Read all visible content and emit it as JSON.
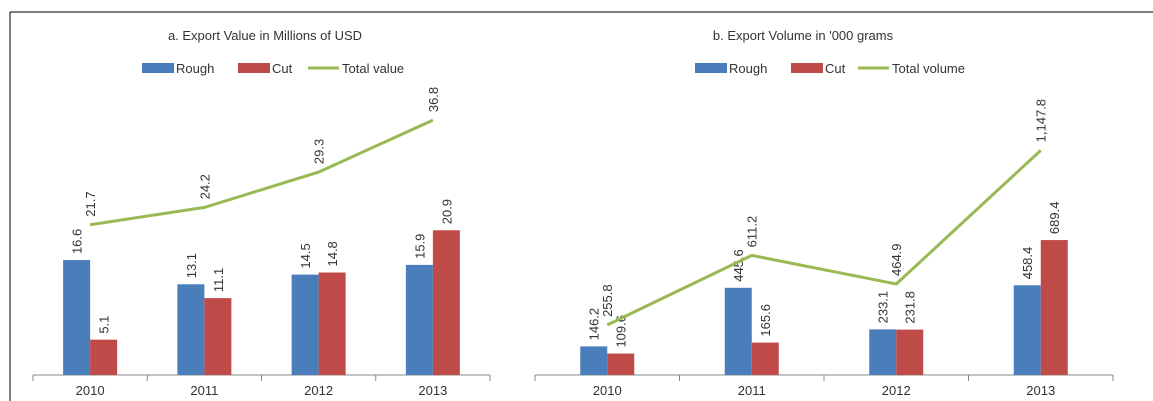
{
  "chart_data": [
    {
      "type": "bar",
      "title": "a. Export Value in Millions of USD",
      "categories": [
        "2010",
        "2011",
        "2012",
        "2013"
      ],
      "series": [
        {
          "name": "Rough",
          "type": "bar",
          "color": "#4a7ebb",
          "values": [
            16.6,
            13.1,
            14.5,
            15.9
          ]
        },
        {
          "name": "Cut",
          "type": "bar",
          "color": "#be4b48",
          "values": [
            5.1,
            11.1,
            14.8,
            20.9
          ]
        },
        {
          "name": "Total value",
          "type": "line",
          "color": "#98b954",
          "values": [
            21.7,
            24.2,
            29.3,
            36.8
          ]
        }
      ],
      "ylim": [
        0,
        40
      ]
    },
    {
      "type": "bar",
      "title": "b. Export Volume in '000 grams",
      "categories": [
        "2010",
        "2011",
        "2012",
        "2013"
      ],
      "series": [
        {
          "name": "Rough",
          "type": "bar",
          "color": "#4a7ebb",
          "values": [
            146.2,
            445.6,
            233.1,
            458.4
          ]
        },
        {
          "name": "Cut",
          "type": "bar",
          "color": "#be4b48",
          "values": [
            109.6,
            165.6,
            231.8,
            689.4
          ]
        },
        {
          "name": "Total volume",
          "type": "line",
          "color": "#98b954",
          "values": [
            255.8,
            611.2,
            464.9,
            1147.8
          ],
          "value_labels": [
            "255.8",
            "611.2",
            "464.9",
            "1,147.8"
          ]
        }
      ],
      "ylim": [
        0,
        1400
      ]
    }
  ]
}
